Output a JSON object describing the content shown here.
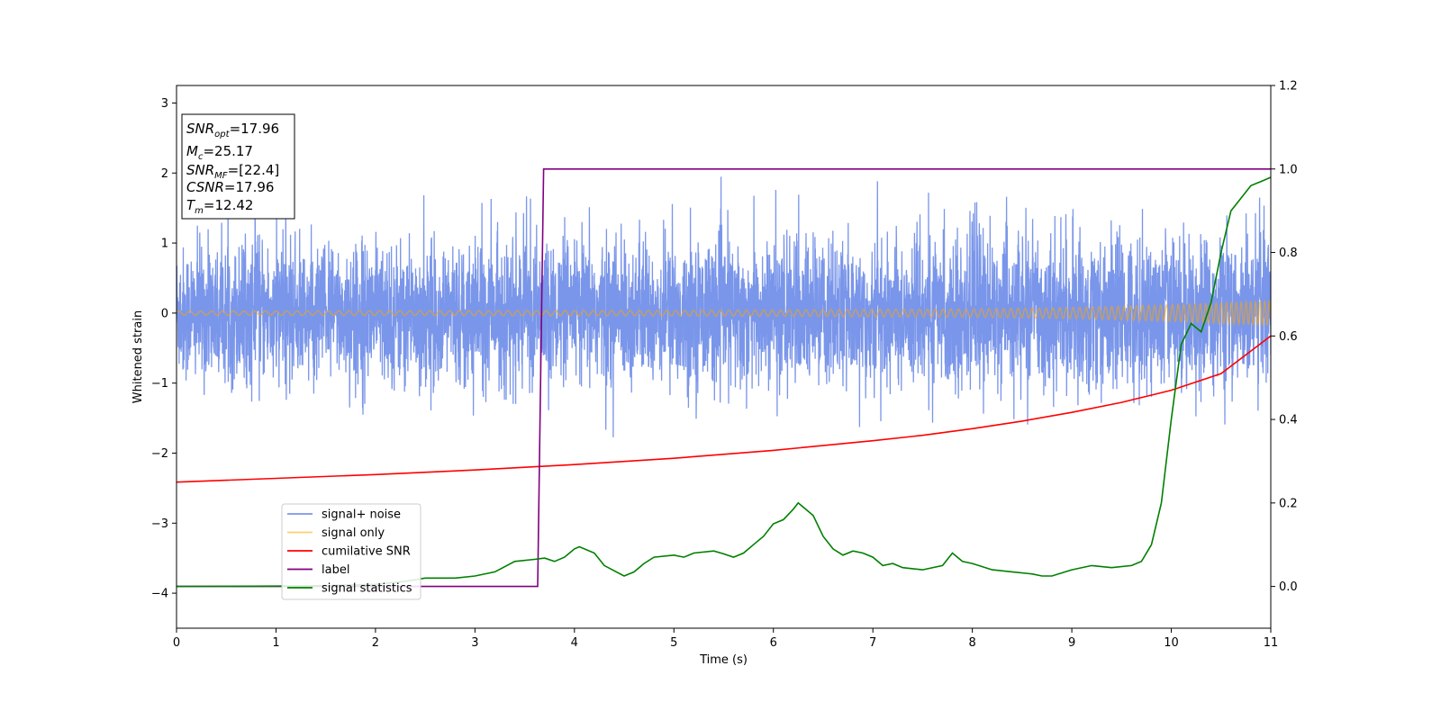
{
  "chart_data": {
    "type": "line",
    "title": "",
    "xlabel": "Time (s)",
    "ylabel": "Whitened strain",
    "xlim": [
      0,
      11
    ],
    "ylim": [
      -4.5,
      3.25
    ],
    "y2lim": [
      -0.1,
      1.2
    ],
    "xticks": [
      "0",
      "1",
      "2",
      "3",
      "4",
      "5",
      "6",
      "7",
      "8",
      "9",
      "10",
      "11"
    ],
    "yticks": [
      "3",
      "2",
      "1",
      "0",
      "−1",
      "−2",
      "−3",
      "−4"
    ],
    "y2ticks": [
      "1.2",
      "1.0",
      "0.8",
      "0.6",
      "0.4",
      "0.2",
      "0.0"
    ],
    "grid": false,
    "legend_position": "lower-left",
    "series": [
      {
        "name": "signal+ noise",
        "axis": "left",
        "color": "#4169e1",
        "description_values": "noise band roughly between -1.0 and +1.0 with spikes to about +2.0 and -1.95",
        "amplitude_envelope": [
          [
            0,
            0.5
          ],
          [
            11,
            0.55
          ]
        ]
      },
      {
        "name": "signal only",
        "axis": "left",
        "color": "#ffa500",
        "amplitude_envelope": [
          [
            0,
            0.03
          ],
          [
            5,
            0.04
          ],
          [
            8,
            0.06
          ],
          [
            9,
            0.08
          ],
          [
            10,
            0.12
          ],
          [
            11,
            0.18
          ]
        ],
        "frequency_envelope": [
          [
            0,
            9
          ],
          [
            5,
            11
          ],
          [
            8,
            13
          ],
          [
            10,
            17
          ],
          [
            11,
            22
          ]
        ]
      },
      {
        "name": "cumilative SNR",
        "axis": "right",
        "color": "#ff0000",
        "x": [
          0,
          1,
          2,
          3,
          4,
          5,
          6,
          7,
          7.5,
          8,
          8.5,
          9,
          9.5,
          10,
          10.5,
          11
        ],
        "y": [
          0.25,
          0.259,
          0.268,
          0.279,
          0.292,
          0.307,
          0.326,
          0.349,
          0.362,
          0.378,
          0.396,
          0.417,
          0.441,
          0.47,
          0.51,
          0.6
        ]
      },
      {
        "name": "label",
        "axis": "right",
        "color": "#800080",
        "x": [
          0,
          3.63,
          3.69,
          11
        ],
        "y": [
          0,
          0,
          1,
          1
        ]
      },
      {
        "name": "signal statistics",
        "axis": "right",
        "color": "#008000",
        "x": [
          0,
          1,
          1.5,
          2,
          2.3,
          2.5,
          2.8,
          3.0,
          3.2,
          3.4,
          3.6,
          3.7,
          3.8,
          3.9,
          4.0,
          4.05,
          4.2,
          4.3,
          4.5,
          4.6,
          4.7,
          4.8,
          5.0,
          5.1,
          5.2,
          5.4,
          5.5,
          5.6,
          5.7,
          5.8,
          5.9,
          6.0,
          6.1,
          6.2,
          6.25,
          6.3,
          6.4,
          6.5,
          6.6,
          6.7,
          6.8,
          6.9,
          7.0,
          7.1,
          7.2,
          7.3,
          7.5,
          7.7,
          7.8,
          7.9,
          8.0,
          8.2,
          8.4,
          8.6,
          8.7,
          8.8,
          9.0,
          9.2,
          9.4,
          9.6,
          9.7,
          9.8,
          9.9,
          10.0,
          10.1,
          10.2,
          10.3,
          10.4,
          10.5,
          10.6,
          10.7,
          10.8,
          10.9,
          11.0
        ],
        "y": [
          0,
          0.001,
          0.002,
          0.005,
          0.012,
          0.02,
          0.02,
          0.025,
          0.035,
          0.06,
          0.065,
          0.068,
          0.06,
          0.07,
          0.09,
          0.095,
          0.08,
          0.05,
          0.025,
          0.035,
          0.055,
          0.07,
          0.075,
          0.07,
          0.08,
          0.085,
          0.078,
          0.07,
          0.08,
          0.1,
          0.12,
          0.15,
          0.16,
          0.185,
          0.2,
          0.19,
          0.17,
          0.12,
          0.09,
          0.075,
          0.085,
          0.08,
          0.07,
          0.05,
          0.055,
          0.045,
          0.04,
          0.05,
          0.08,
          0.06,
          0.055,
          0.04,
          0.035,
          0.03,
          0.025,
          0.025,
          0.04,
          0.05,
          0.045,
          0.05,
          0.06,
          0.1,
          0.2,
          0.4,
          0.58,
          0.63,
          0.61,
          0.68,
          0.8,
          0.9,
          0.93,
          0.96,
          0.97,
          0.98
        ]
      }
    ],
    "annotation": {
      "lines": [
        {
          "base": "SNR",
          "sub": "opt",
          "value": "=17.96"
        },
        {
          "base": "M",
          "sub": "c",
          "value": "=25.17"
        },
        {
          "base": "SNR",
          "sub": "MF",
          "value": "=[22.4]"
        },
        {
          "base": "CSNR",
          "sub": "",
          "value": "=17.96"
        },
        {
          "base": "T",
          "sub": "m",
          "value": "=12.42"
        }
      ]
    }
  }
}
